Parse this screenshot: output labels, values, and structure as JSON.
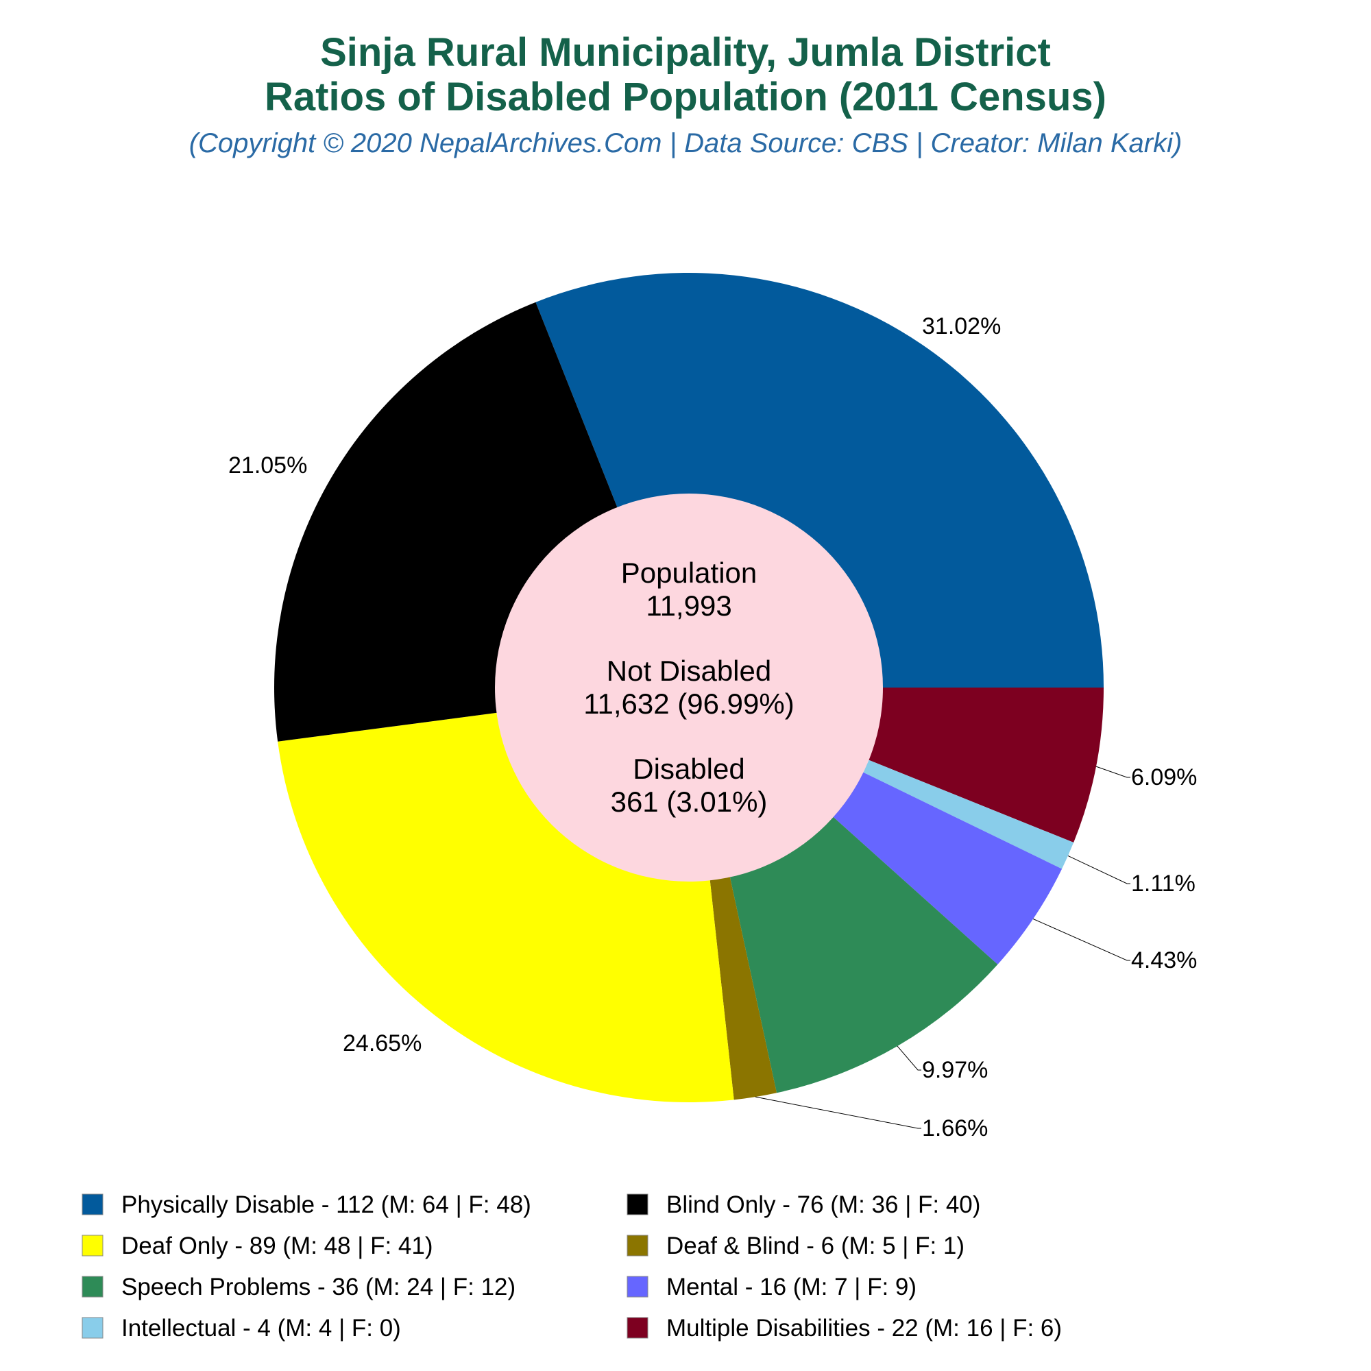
{
  "chart_data": {
    "type": "pie",
    "title": [
      "Sinja Rural Municipality, Jumla District",
      "Ratios of Disabled Population (2011 Census)"
    ],
    "subtitle": "(Copyright © 2020 NepalArchives.Com | Data Source: CBS | Creator: Milan Karki)",
    "center": {
      "population_label": "Population",
      "population_value": "11,993",
      "not_disabled_label": "Not Disabled",
      "not_disabled_value": "11,632 (96.99%)",
      "disabled_label": "Disabled",
      "disabled_value": "361 (3.01%)"
    },
    "legend_position": "bottom",
    "slices": [
      {
        "label": "Physically Disable - 112 (M: 64 | F: 48)",
        "value": 112,
        "percent": "31.02%",
        "color": "#025a9c"
      },
      {
        "label": "Multiple Disabilities - 22 (M: 16 | F: 6)",
        "value": 22,
        "percent": "6.09%",
        "color": "#7d0020"
      },
      {
        "label": "Intellectual - 4 (M: 4 | F: 0)",
        "value": 4,
        "percent": "1.11%",
        "color": "#89cdea"
      },
      {
        "label": "Mental - 16 (M: 7 | F: 9)",
        "value": 16,
        "percent": "4.43%",
        "color": "#6666ff"
      },
      {
        "label": "Speech Problems - 36 (M: 24 | F: 12)",
        "value": 36,
        "percent": "9.97%",
        "color": "#2e8b57"
      },
      {
        "label": "Deaf & Blind - 6 (M: 5 | F: 1)",
        "value": 6,
        "percent": "1.66%",
        "color": "#8b7500"
      },
      {
        "label": "Deaf Only - 89 (M: 48 | F: 41)",
        "value": 89,
        "percent": "24.65%",
        "color": "#ffff00"
      },
      {
        "label": "Blind Only - 76 (M: 36 | F: 40)",
        "value": 76,
        "percent": "21.05%",
        "color": "#000000"
      }
    ],
    "legend_order": [
      "Physically Disable - 112 (M: 64 | F: 48)",
      "Blind Only - 76 (M: 36 | F: 40)",
      "Deaf Only - 89 (M: 48 | F: 41)",
      "Deaf & Blind - 6 (M: 5 | F: 1)",
      "Speech Problems - 36 (M: 24 | F: 12)",
      "Mental - 16 (M: 7 | F: 9)",
      "Intellectual - 4 (M: 4 | F: 0)",
      "Multiple Disabilities - 22 (M: 16 | F: 6)"
    ]
  }
}
